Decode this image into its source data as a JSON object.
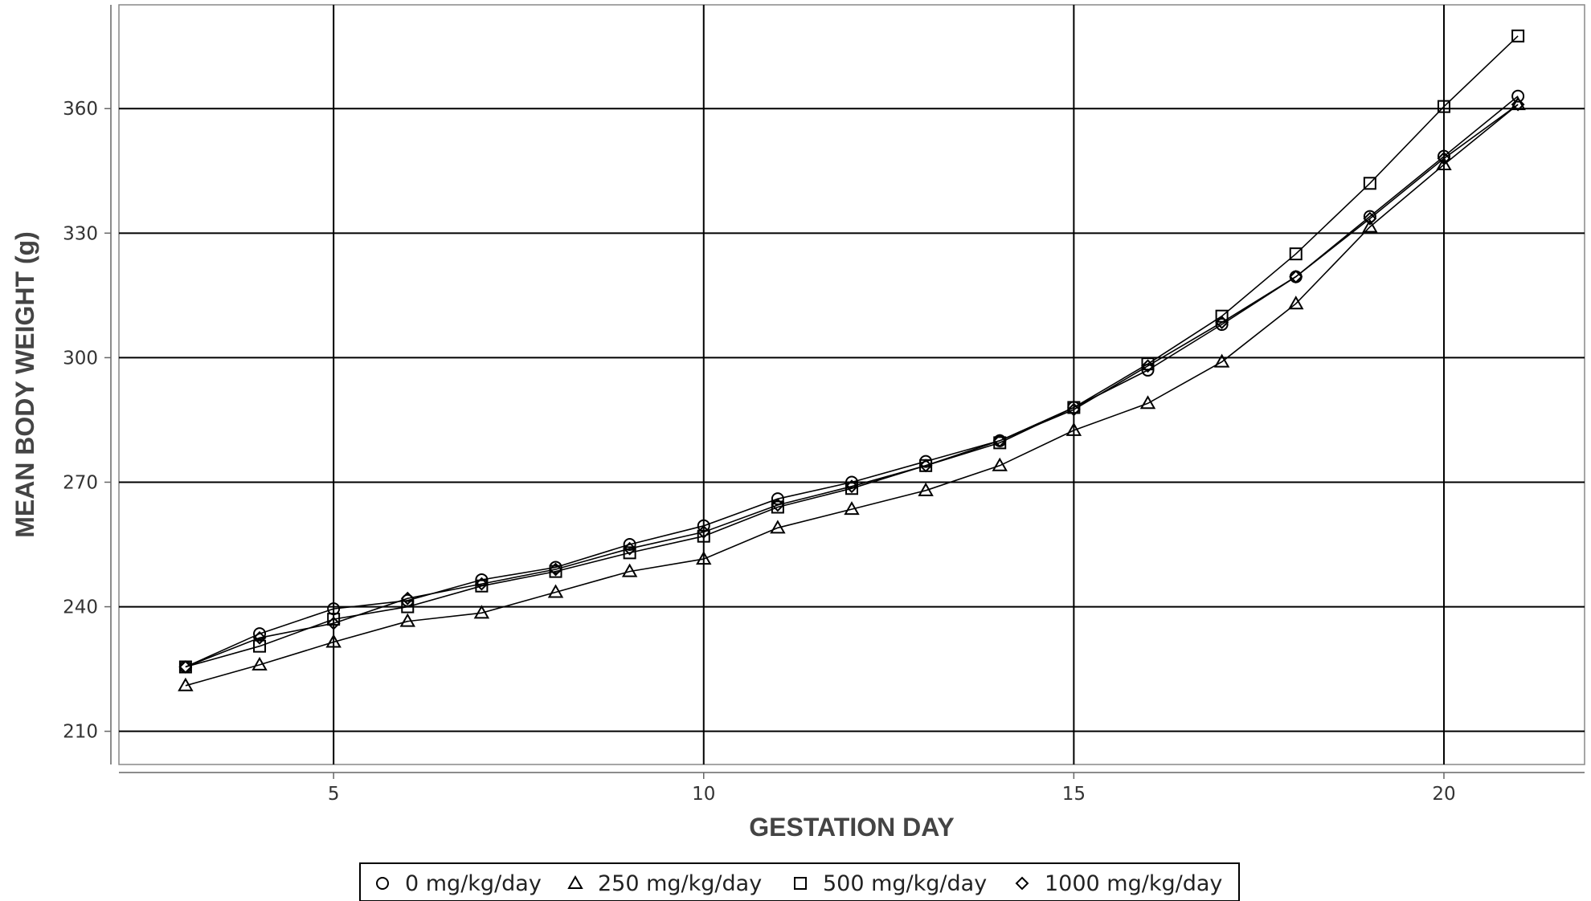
{
  "chart_data": {
    "type": "line",
    "xlabel": "GESTATION DAY",
    "ylabel": "MEAN BODY WEIGHT (g)",
    "xlim": [
      2.1,
      21.9
    ],
    "ylim": [
      202,
      385
    ],
    "xticks": [
      5,
      10,
      15,
      20
    ],
    "yticks": [
      210,
      240,
      270,
      300,
      330,
      360
    ],
    "grid": true,
    "legend_position": "bottom",
    "x": [
      3,
      4,
      5,
      6,
      7,
      8,
      9,
      10,
      11,
      12,
      13,
      14,
      15,
      16,
      17,
      18,
      19,
      20,
      21
    ],
    "series": [
      {
        "name": "0 mg/kg/day",
        "marker": "circle",
        "values": [
          225.5,
          233.5,
          239.5,
          241.5,
          246.5,
          249.5,
          255,
          259.5,
          266,
          270,
          275,
          280,
          288,
          297,
          308,
          319.5,
          334,
          348.5,
          363
        ]
      },
      {
        "name": "250 mg/kg/day",
        "marker": "triangle",
        "values": [
          221,
          226,
          231.5,
          236.5,
          238.5,
          243.5,
          248.5,
          251.5,
          259,
          263.5,
          268,
          274,
          282.5,
          289,
          299,
          313,
          331.5,
          346.5,
          361
        ]
      },
      {
        "name": "500 mg/kg/day",
        "marker": "square",
        "values": [
          225.5,
          230.5,
          237,
          240,
          245,
          248.5,
          253,
          257,
          264,
          268.5,
          274,
          279.5,
          288,
          298.5,
          310,
          325,
          342,
          360.5,
          377.5
        ]
      },
      {
        "name": "1000 mg/kg/day",
        "marker": "diamond",
        "values": [
          225.5,
          232.5,
          236,
          242,
          245.5,
          249,
          254,
          258,
          264.5,
          269,
          274,
          280,
          287.5,
          298,
          308.5,
          319.5,
          333.5,
          348,
          361
        ]
      }
    ]
  }
}
